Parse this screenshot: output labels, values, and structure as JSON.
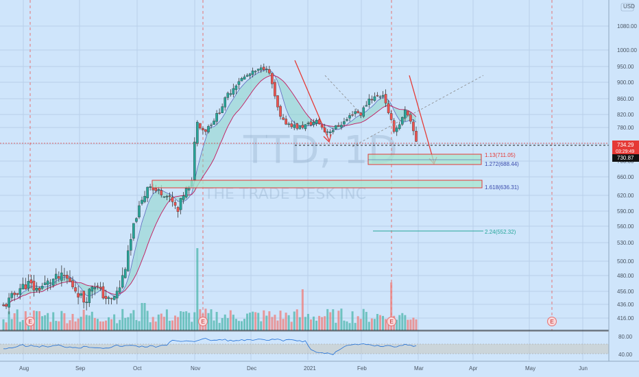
{
  "chart_data": {
    "type": "candlestick",
    "currency": "USD",
    "watermark": {
      "symbol": "TTD, 1D",
      "name": "THE TRADE DESK INC"
    },
    "y_axis": {
      "range": [
        400,
        1100
      ],
      "ticks": [
        1080,
        1000,
        950,
        900,
        860,
        820,
        780,
        740,
        700,
        660,
        620,
        590,
        560,
        530,
        500,
        480,
        456,
        436,
        416
      ],
      "tick_labels": [
        "1080.00",
        "1000.00",
        "950.00",
        "900.00",
        "860.00",
        "820.00",
        "780.00",
        "740.00",
        "700.00",
        "660.00",
        "620.00",
        "590.00",
        "560.00",
        "530.00",
        "500.00",
        "480.00",
        "456.00",
        "436.00",
        "416.00"
      ]
    },
    "x_axis": {
      "labels": [
        "Aug",
        "Sep",
        "Oct",
        "Nov",
        "Dec",
        "2021",
        "Feb",
        "Mar",
        "Apr",
        "May",
        "Jun"
      ]
    },
    "price_labels": [
      {
        "value": 734.29,
        "text": "734.29",
        "sub": "03:29:49",
        "color": "#e53935"
      },
      {
        "value": 730.87,
        "text": "730.87",
        "color": "#111111"
      }
    ],
    "earnings_marker": "E",
    "fib_levels": [
      {
        "ratio": "1.13",
        "price": 711.05,
        "label": "1.13(711.05)",
        "color": "#e53935"
      },
      {
        "ratio": "1.272",
        "price": 688.44,
        "label": "1.272(688.44)",
        "color": "#3949ab"
      },
      {
        "ratio": "1.618",
        "price": 636.31,
        "label": "1.618(636.31)",
        "color": "#3949ab"
      },
      {
        "ratio": "2.24",
        "price": 552.32,
        "label": "2.24(552.32)",
        "color": "#26a69a"
      }
    ],
    "oscillator": {
      "ticks": [
        "80.00",
        "40.00"
      ]
    },
    "colors": {
      "up": "#26a69a",
      "down": "#ef5350",
      "ma": "#c2185b",
      "band": "#7fd0bf"
    }
  }
}
